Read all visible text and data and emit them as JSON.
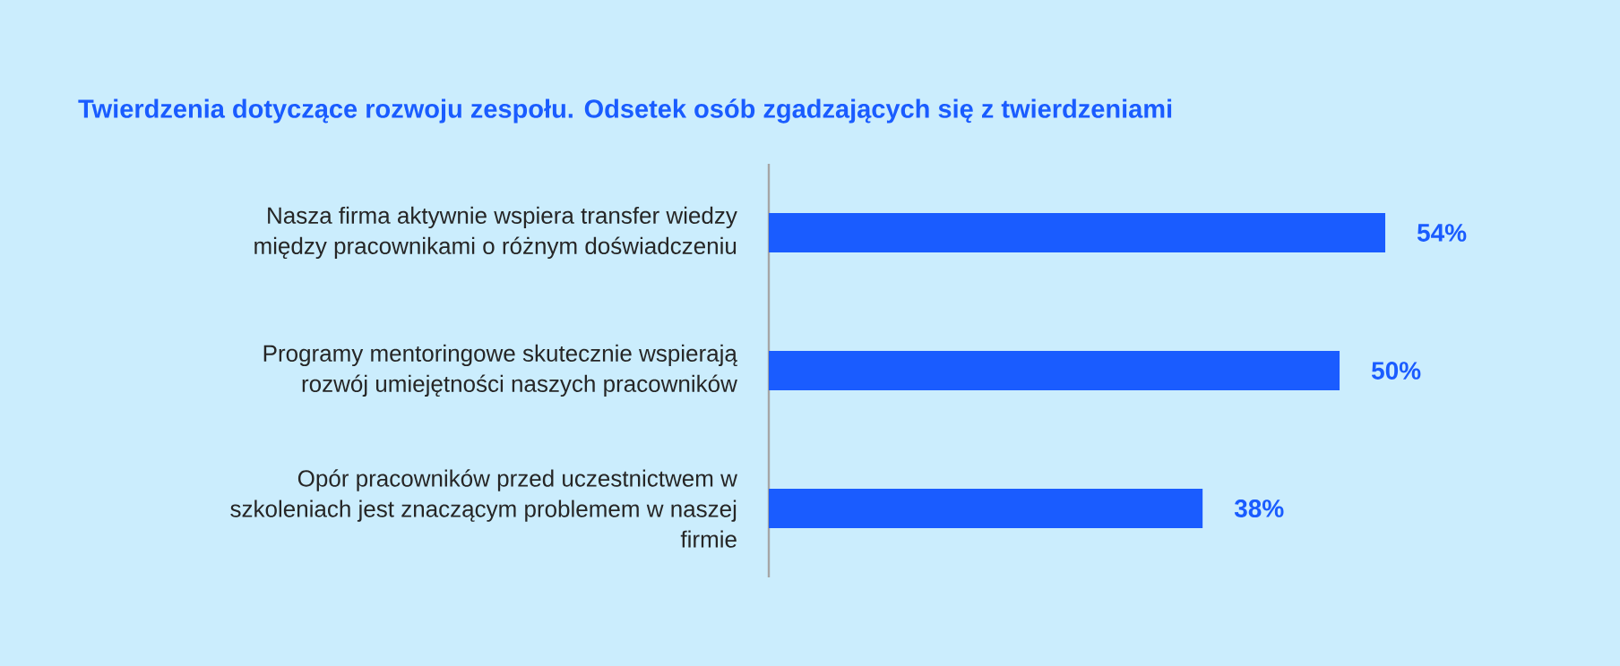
{
  "chart_data": {
    "type": "bar",
    "orientation": "horizontal",
    "title": "Twierdzenia dotyczące rozwoju zespołu. Odsetek osób zgadzających się z twierdzeniami",
    "categories": [
      "Nasza firma aktywnie wspiera transfer wiedzy między pracownikami o różnym doświadczeniu",
      "Programy mentoringowe skutecznie wspierają rozwój umiejętności naszych pracowników",
      "Opór pracowników przed uczestnictwem w szkoleniach jest znaczącym problemem w naszej firmie"
    ],
    "values": [
      54,
      50,
      38
    ],
    "value_labels": [
      "54%",
      "50%",
      "38%"
    ],
    "color": "#1a5cff"
  }
}
